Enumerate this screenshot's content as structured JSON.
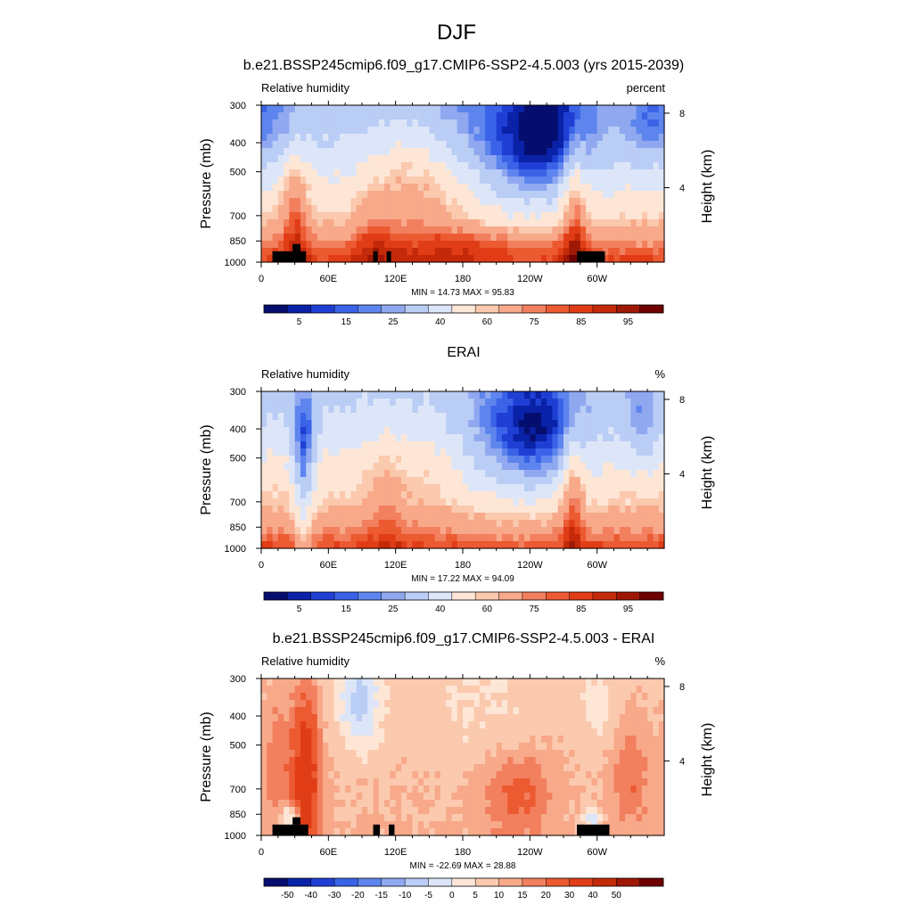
{
  "figure": {
    "title": "DJF"
  },
  "colorbar_colors": [
    "#050e6e",
    "#0a22a8",
    "#1f3fd4",
    "#3a63e8",
    "#5e85ee",
    "#8fa8f0",
    "#bacdf5",
    "#dde6f8",
    "#fde6d6",
    "#fbc9ae",
    "#f7a98a",
    "#f27f5e",
    "#ec5a32",
    "#e03d17",
    "#c42a09",
    "#9e1805",
    "#6e0000"
  ],
  "colors": {
    "land_mask": "#000000",
    "frame": "#000000"
  },
  "chart_data": [
    {
      "type": "heatmap",
      "title": "b.e21.BSSP245cmip6.f09_g17.CMIP6-SSP2-4.5.003 (yrs 2015-2039)",
      "left_label": "Relative humidity",
      "right_label": "percent",
      "ylabel": "Pressure (mb)",
      "ylabel_right": "Height (km)",
      "x_ticks": [
        "0",
        "60E",
        "120E",
        "180",
        "120W",
        "60W"
      ],
      "x_tick_values": [
        0,
        60,
        120,
        180,
        240,
        300
      ],
      "xlim": [
        0,
        360
      ],
      "y_ticks": [
        "300",
        "400",
        "500",
        "700",
        "850",
        "1000"
      ],
      "y_tick_values": [
        300,
        400,
        500,
        700,
        850,
        1000
      ],
      "ylim": [
        1000,
        300
      ],
      "y_scale": "log",
      "height_ticks": [
        "8",
        "4"
      ],
      "height_tick_values": [
        8,
        4
      ],
      "min_label": "MIN = 14.73  MAX = 95.83",
      "colorbar_ticks": [
        "5",
        "15",
        "25",
        "40",
        "60",
        "75",
        "85",
        "95"
      ],
      "colorbar_tick_positions": [
        1,
        3,
        5,
        7,
        9,
        11,
        13,
        15
      ],
      "field": {
        "base": [
          32,
          40,
          48,
          60,
          75,
          88
        ],
        "bg_noise": 2,
        "features": [
          {
            "lon": 30,
            "p": 650,
            "w": 9,
            "h": 0.35,
            "amp": 22
          },
          {
            "lon": 100,
            "p": 800,
            "w": 14,
            "h": 0.3,
            "amp": 12
          },
          {
            "lon": 128,
            "p": 500,
            "w": 20,
            "h": 0.35,
            "amp": 12
          },
          {
            "lon": 255,
            "p": 380,
            "w": 28,
            "h": 0.3,
            "amp": -26
          },
          {
            "lon": 225,
            "p": 430,
            "w": 45,
            "h": 0.4,
            "amp": -18
          },
          {
            "lon": 280,
            "p": 650,
            "w": 8,
            "h": 0.4,
            "amp": 24
          },
          {
            "lon": 200,
            "p": 880,
            "w": 50,
            "h": 0.08,
            "amp": 8
          },
          {
            "lon": 15,
            "p": 350,
            "w": 16,
            "h": 0.25,
            "amp": -10
          },
          {
            "lon": 345,
            "p": 360,
            "w": 15,
            "h": 0.25,
            "amp": -12
          },
          {
            "lon": 165,
            "p": 620,
            "w": 25,
            "h": 0.35,
            "amp": 10
          }
        ]
      },
      "land_mask": [
        {
          "lon0": 10,
          "lon1": 40,
          "p0": 920,
          "p1": 1000
        },
        {
          "lon0": 28,
          "lon1": 35,
          "p0": 870,
          "p1": 920
        },
        {
          "lon0": 100,
          "lon1": 104,
          "p0": 920,
          "p1": 1000
        },
        {
          "lon0": 112,
          "lon1": 116,
          "p0": 920,
          "p1": 1000
        },
        {
          "lon0": 282,
          "lon1": 307,
          "p0": 920,
          "p1": 1000
        }
      ]
    },
    {
      "type": "heatmap",
      "title": "ERAI",
      "left_label": "Relative humidity",
      "right_label": "%",
      "ylabel": "Pressure (mb)",
      "ylabel_right": "Height (km)",
      "x_ticks": [
        "0",
        "60E",
        "120E",
        "180",
        "120W",
        "60W"
      ],
      "x_tick_values": [
        0,
        60,
        120,
        180,
        240,
        300
      ],
      "xlim": [
        0,
        360
      ],
      "y_ticks": [
        "300",
        "400",
        "500",
        "700",
        "850",
        "1000"
      ],
      "y_tick_values": [
        300,
        400,
        500,
        700,
        850,
        1000
      ],
      "ylim": [
        1000,
        300
      ],
      "y_scale": "log",
      "height_ticks": [
        "8",
        "4"
      ],
      "height_tick_values": [
        8,
        4
      ],
      "min_label": "MIN = 17.22  MAX = 94.09",
      "colorbar_ticks": [
        "5",
        "15",
        "25",
        "40",
        "60",
        "75",
        "85",
        "95"
      ],
      "colorbar_tick_positions": [
        1,
        3,
        5,
        7,
        9,
        11,
        13,
        15
      ],
      "field": {
        "base": [
          38,
          44,
          52,
          62,
          74,
          86
        ],
        "bg_noise": 2,
        "features": [
          {
            "lon": 38,
            "p": 420,
            "w": 8,
            "h": 0.25,
            "amp": -22
          },
          {
            "lon": 38,
            "p": 720,
            "w": 6,
            "h": 0.45,
            "amp": -20
          },
          {
            "lon": 250,
            "p": 400,
            "w": 28,
            "h": 0.3,
            "amp": -26
          },
          {
            "lon": 220,
            "p": 440,
            "w": 40,
            "h": 0.4,
            "amp": -18
          },
          {
            "lon": 340,
            "p": 380,
            "w": 12,
            "h": 0.25,
            "amp": -16
          },
          {
            "lon": 278,
            "p": 660,
            "w": 7,
            "h": 0.4,
            "amp": 22
          },
          {
            "lon": 110,
            "p": 700,
            "w": 12,
            "h": 0.35,
            "amp": 10
          },
          {
            "lon": 150,
            "p": 520,
            "w": 30,
            "h": 0.35,
            "amp": 6
          }
        ]
      },
      "land_mask": []
    },
    {
      "type": "heatmap",
      "title": "b.e21.BSSP245cmip6.f09_g17.CMIP6-SSP2-4.5.003 - ERAI",
      "left_label": "Relative humidity",
      "right_label": "%",
      "ylabel": "Pressure (mb)",
      "ylabel_right": "Height (km)",
      "x_ticks": [
        "0",
        "60E",
        "120E",
        "180",
        "120W",
        "60W"
      ],
      "x_tick_values": [
        0,
        60,
        120,
        180,
        240,
        300
      ],
      "xlim": [
        0,
        360
      ],
      "y_ticks": [
        "300",
        "400",
        "500",
        "700",
        "850",
        "1000"
      ],
      "y_tick_values": [
        300,
        400,
        500,
        700,
        850,
        1000
      ],
      "ylim": [
        1000,
        300
      ],
      "y_scale": "log",
      "height_ticks": [
        "8",
        "4"
      ],
      "height_tick_values": [
        8,
        4
      ],
      "min_label": "MIN = -22.69  MAX = 28.88",
      "colorbar_ticks": [
        "-50",
        "-40",
        "-30",
        "-20",
        "-15",
        "-10",
        "-5",
        "0",
        "5",
        "10",
        "15",
        "20",
        "30",
        "40",
        "50"
      ],
      "colorbar_tick_positions": [
        1,
        2,
        3,
        4,
        5,
        6,
        7,
        8,
        9,
        10,
        11,
        12,
        13,
        14,
        15
      ],
      "field": {
        "base": [
          3,
          4,
          4,
          5,
          5,
          6
        ],
        "bg_noise": 1.5,
        "features": [
          {
            "lon": 40,
            "p": 620,
            "w": 9,
            "h": 0.5,
            "amp": 22
          },
          {
            "lon": 15,
            "p": 560,
            "w": 10,
            "h": 0.4,
            "amp": 9
          },
          {
            "lon": 88,
            "p": 360,
            "w": 14,
            "h": 0.25,
            "amp": -16
          },
          {
            "lon": 25,
            "p": 880,
            "w": 6,
            "h": 0.08,
            "amp": -18
          },
          {
            "lon": 230,
            "p": 720,
            "w": 22,
            "h": 0.25,
            "amp": 12
          },
          {
            "lon": 330,
            "p": 620,
            "w": 12,
            "h": 0.3,
            "amp": 10
          },
          {
            "lon": 295,
            "p": 880,
            "w": 6,
            "h": 0.06,
            "amp": -16
          },
          {
            "lon": 300,
            "p": 380,
            "w": 12,
            "h": 0.2,
            "amp": -6
          },
          {
            "lon": 200,
            "p": 400,
            "w": 40,
            "h": 0.3,
            "amp": -4
          }
        ]
      },
      "land_mask": [
        {
          "lon0": 10,
          "lon1": 42,
          "p0": 920,
          "p1": 1000
        },
        {
          "lon0": 28,
          "lon1": 35,
          "p0": 870,
          "p1": 920
        },
        {
          "lon0": 100,
          "lon1": 106,
          "p0": 920,
          "p1": 1000
        },
        {
          "lon0": 114,
          "lon1": 119,
          "p0": 920,
          "p1": 1000
        },
        {
          "lon0": 282,
          "lon1": 311,
          "p0": 920,
          "p1": 1000
        }
      ]
    }
  ]
}
